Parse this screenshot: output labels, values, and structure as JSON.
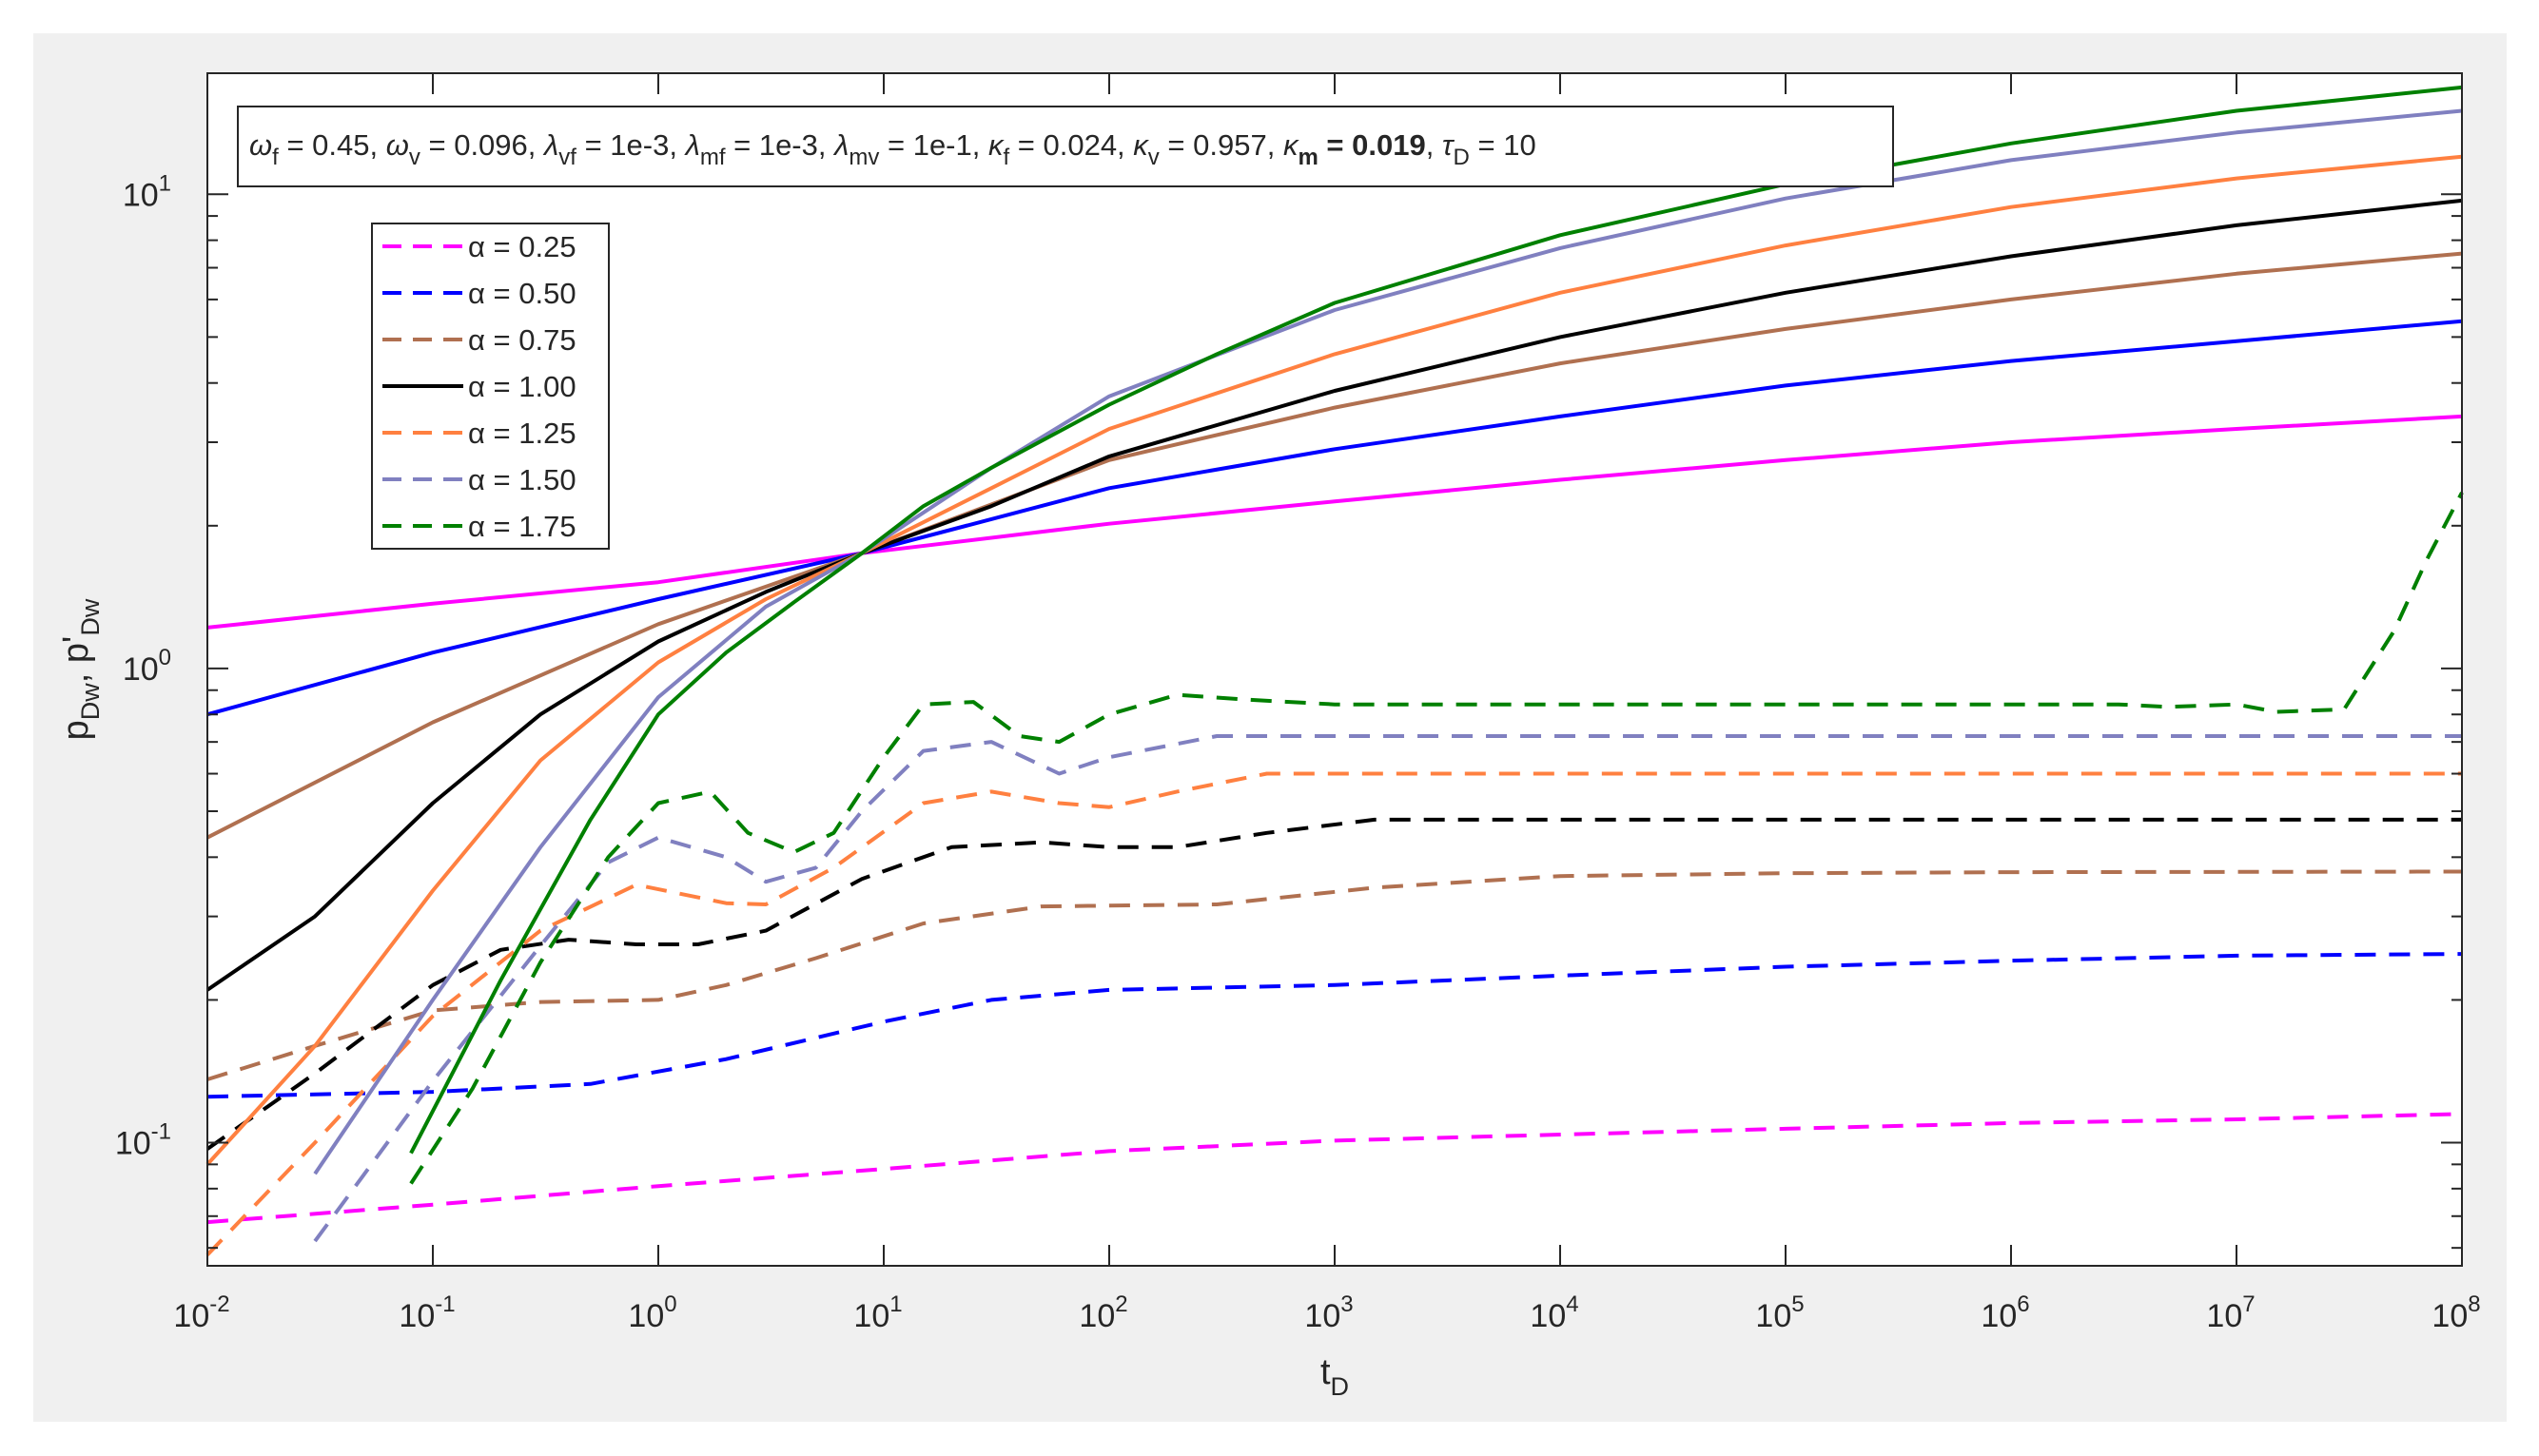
{
  "chart_data": {
    "type": "line",
    "xlabel": "t",
    "xlabel_sub": "D",
    "ylabel_parts": [
      {
        "t": "p",
        "sub": false
      },
      {
        "t": "Dw",
        "sub": true
      },
      {
        "t": ", p'",
        "sub": false
      },
      {
        "t": "Dw",
        "sub": true
      }
    ],
    "x_scale": "log",
    "y_scale": "log",
    "xlim": [
      0.01,
      100000000
    ],
    "ylim": [
      0.055,
      18
    ],
    "x_ticks": [
      {
        "base": "10",
        "exp": "-2",
        "value": 0.01
      },
      {
        "base": "10",
        "exp": "-1",
        "value": 0.1
      },
      {
        "base": "10",
        "exp": "0",
        "value": 1
      },
      {
        "base": "10",
        "exp": "1",
        "value": 10
      },
      {
        "base": "10",
        "exp": "2",
        "value": 100
      },
      {
        "base": "10",
        "exp": "3",
        "value": 1000
      },
      {
        "base": "10",
        "exp": "4",
        "value": 10000
      },
      {
        "base": "10",
        "exp": "5",
        "value": 100000
      },
      {
        "base": "10",
        "exp": "6",
        "value": 1000000
      },
      {
        "base": "10",
        "exp": "7",
        "value": 10000000
      },
      {
        "base": "10",
        "exp": "8",
        "value": 100000000
      }
    ],
    "y_ticks": [
      {
        "base": "10",
        "exp": "-1",
        "value": 0.1
      },
      {
        "base": "10",
        "exp": "0",
        "value": 1
      },
      {
        "base": "10",
        "exp": "1",
        "value": 10
      }
    ],
    "grid": false,
    "annotation_parts": [
      {
        "t": "ω",
        "greek": true
      },
      {
        "t": "f",
        "sub": true
      },
      {
        "t": " = 0.45, "
      },
      {
        "t": "ω",
        "greek": true
      },
      {
        "t": "v",
        "sub": true
      },
      {
        "t": " = 0.096, "
      },
      {
        "t": "λ",
        "greek": true
      },
      {
        "t": "vf",
        "sub": true
      },
      {
        "t": " = 1e-3, "
      },
      {
        "t": "λ",
        "greek": true
      },
      {
        "t": "mf",
        "sub": true
      },
      {
        "t": " = 1e-3, "
      },
      {
        "t": "λ",
        "greek": true
      },
      {
        "t": "mv",
        "sub": true
      },
      {
        "t": " = 1e-1, "
      },
      {
        "t": "κ",
        "greek": true
      },
      {
        "t": "f",
        "sub": true
      },
      {
        "t": " = 0.024, "
      },
      {
        "t": "κ",
        "greek": true
      },
      {
        "t": "v",
        "sub": true
      },
      {
        "t": " = 0.957, "
      },
      {
        "t": "κ",
        "greek": true
      },
      {
        "t": "m",
        "sub": true,
        "bold": true
      },
      {
        "t": " = 0.019",
        "bold": true
      },
      {
        "t": ", "
      },
      {
        "t": "τ",
        "greek": true
      },
      {
        "t": "D",
        "sub": true
      },
      {
        "t": " = 10"
      }
    ],
    "legend_position": "top-left",
    "series": [
      {
        "name": "α = 0.25",
        "color": "#ff00ff",
        "pressure": [
          [
            0.01,
            1.22
          ],
          [
            0.1,
            1.37
          ],
          [
            1,
            1.52
          ],
          [
            8,
            1.75
          ],
          [
            100,
            2.02
          ],
          [
            1000,
            2.25
          ],
          [
            10000,
            2.5
          ],
          [
            100000,
            2.75
          ],
          [
            1000000,
            3.0
          ],
          [
            10000000,
            3.2
          ],
          [
            100000000,
            3.4
          ]
        ],
        "derivative": [
          [
            0.01,
            0.068
          ],
          [
            0.1,
            0.074
          ],
          [
            1,
            0.081
          ],
          [
            10,
            0.088
          ],
          [
            100,
            0.096
          ],
          [
            1000,
            0.101
          ],
          [
            10000,
            0.104
          ],
          [
            100000,
            0.107
          ],
          [
            1000000,
            0.11
          ],
          [
            10000000,
            0.112
          ],
          [
            100000000,
            0.115
          ]
        ]
      },
      {
        "name": "α = 0.50",
        "color": "#0000ff",
        "pressure": [
          [
            0.01,
            0.8
          ],
          [
            0.1,
            1.08
          ],
          [
            1,
            1.4
          ],
          [
            8,
            1.75
          ],
          [
            100,
            2.4
          ],
          [
            1000,
            2.9
          ],
          [
            10000,
            3.4
          ],
          [
            100000,
            3.95
          ],
          [
            1000000,
            4.45
          ],
          [
            10000000,
            4.9
          ],
          [
            100000000,
            5.4
          ]
        ],
        "derivative": [
          [
            0.01,
            0.125
          ],
          [
            0.1,
            0.128
          ],
          [
            0.5,
            0.133
          ],
          [
            2,
            0.15
          ],
          [
            10,
            0.18
          ],
          [
            30,
            0.2
          ],
          [
            100,
            0.21
          ],
          [
            1000,
            0.215
          ],
          [
            10000,
            0.225
          ],
          [
            100000,
            0.235
          ],
          [
            1000000,
            0.242
          ],
          [
            10000000,
            0.248
          ],
          [
            100000000,
            0.25
          ]
        ]
      },
      {
        "name": "α = 0.75",
        "color": "#b07050",
        "pressure": [
          [
            0.01,
            0.44
          ],
          [
            0.1,
            0.77
          ],
          [
            1,
            1.24
          ],
          [
            8,
            1.75
          ],
          [
            100,
            2.75
          ],
          [
            1000,
            3.55
          ],
          [
            10000,
            4.4
          ],
          [
            100000,
            5.2
          ],
          [
            1000000,
            6.0
          ],
          [
            10000000,
            6.8
          ],
          [
            100000000,
            7.5
          ]
        ],
        "derivative": [
          [
            0.01,
            0.136
          ],
          [
            0.03,
            0.16
          ],
          [
            0.1,
            0.19
          ],
          [
            0.3,
            0.198
          ],
          [
            1,
            0.2
          ],
          [
            2,
            0.215
          ],
          [
            5,
            0.245
          ],
          [
            15,
            0.29
          ],
          [
            50,
            0.315
          ],
          [
            300,
            0.318
          ],
          [
            1500,
            0.345
          ],
          [
            10000,
            0.365
          ],
          [
            100000,
            0.37
          ],
          [
            1000000,
            0.372
          ],
          [
            100000000,
            0.373
          ]
        ]
      },
      {
        "name": "α = 1.00",
        "color": "#000000",
        "pressure": [
          [
            0.01,
            0.21
          ],
          [
            0.03,
            0.3
          ],
          [
            0.1,
            0.52
          ],
          [
            0.3,
            0.8
          ],
          [
            1,
            1.14
          ],
          [
            3,
            1.45
          ],
          [
            8,
            1.75
          ],
          [
            30,
            2.2
          ],
          [
            100,
            2.8
          ],
          [
            1000,
            3.85
          ],
          [
            10000,
            5.0
          ],
          [
            100000,
            6.2
          ],
          [
            1000000,
            7.4
          ],
          [
            10000000,
            8.6
          ],
          [
            100000000,
            9.7
          ]
        ],
        "derivative": [
          [
            0.01,
            0.097
          ],
          [
            0.03,
            0.14
          ],
          [
            0.1,
            0.215
          ],
          [
            0.2,
            0.255
          ],
          [
            0.4,
            0.268
          ],
          [
            0.8,
            0.262
          ],
          [
            1.5,
            0.262
          ],
          [
            3,
            0.28
          ],
          [
            8,
            0.36
          ],
          [
            20,
            0.42
          ],
          [
            50,
            0.43
          ],
          [
            100,
            0.42
          ],
          [
            200,
            0.42
          ],
          [
            500,
            0.45
          ],
          [
            1500,
            0.48
          ],
          [
            10000,
            0.48
          ],
          [
            100000000,
            0.48
          ]
        ]
      },
      {
        "name": "α = 1.25",
        "color": "#ff8040",
        "pressure": [
          [
            0.01,
            0.09
          ],
          [
            0.03,
            0.16
          ],
          [
            0.1,
            0.34
          ],
          [
            0.3,
            0.64
          ],
          [
            1,
            1.03
          ],
          [
            3,
            1.4
          ],
          [
            8,
            1.75
          ],
          [
            30,
            2.4
          ],
          [
            100,
            3.2
          ],
          [
            1000,
            4.6
          ],
          [
            10000,
            6.2
          ],
          [
            100000,
            7.8
          ],
          [
            1000000,
            9.4
          ],
          [
            10000000,
            10.8
          ],
          [
            100000000,
            12.0
          ]
        ],
        "derivative": [
          [
            0.01,
            0.058
          ],
          [
            0.03,
            0.1
          ],
          [
            0.1,
            0.185
          ],
          [
            0.3,
            0.28
          ],
          [
            0.8,
            0.35
          ],
          [
            2,
            0.32
          ],
          [
            3,
            0.318
          ],
          [
            6,
            0.38
          ],
          [
            15,
            0.52
          ],
          [
            30,
            0.55
          ],
          [
            60,
            0.52
          ],
          [
            100,
            0.51
          ],
          [
            200,
            0.55
          ],
          [
            500,
            0.6
          ],
          [
            2000,
            0.6
          ],
          [
            100000000,
            0.6
          ]
        ]
      },
      {
        "name": "α = 1.50",
        "color": "#8080c0",
        "pressure": [
          [
            0.03,
            0.086
          ],
          [
            0.1,
            0.2
          ],
          [
            0.3,
            0.42
          ],
          [
            1,
            0.87
          ],
          [
            3,
            1.35
          ],
          [
            8,
            1.75
          ],
          [
            30,
            2.65
          ],
          [
            100,
            3.75
          ],
          [
            1000,
            5.7
          ],
          [
            10000,
            7.7
          ],
          [
            100000,
            9.8
          ],
          [
            1000000,
            11.8
          ],
          [
            10000000,
            13.5
          ],
          [
            100000000,
            15.0
          ]
        ],
        "derivative": [
          [
            0.03,
            0.062
          ],
          [
            0.1,
            0.135
          ],
          [
            0.3,
            0.26
          ],
          [
            0.6,
            0.39
          ],
          [
            1,
            0.44
          ],
          [
            2,
            0.4
          ],
          [
            3,
            0.355
          ],
          [
            5,
            0.38
          ],
          [
            8,
            0.5
          ],
          [
            15,
            0.67
          ],
          [
            30,
            0.7
          ],
          [
            60,
            0.6
          ],
          [
            100,
            0.65
          ],
          [
            300,
            0.72
          ],
          [
            1000,
            0.72
          ],
          [
            10000,
            0.72
          ],
          [
            100000000,
            0.72
          ]
        ]
      },
      {
        "name": "α = 1.75",
        "color": "#008000",
        "pressure": [
          [
            0.08,
            0.095
          ],
          [
            0.2,
            0.22
          ],
          [
            0.5,
            0.48
          ],
          [
            1,
            0.8
          ],
          [
            2,
            1.08
          ],
          [
            4,
            1.38
          ],
          [
            8,
            1.75
          ],
          [
            15,
            2.2
          ],
          [
            30,
            2.65
          ],
          [
            100,
            3.6
          ],
          [
            300,
            4.6
          ],
          [
            1000,
            5.9
          ],
          [
            10000,
            8.2
          ],
          [
            100000,
            10.5
          ],
          [
            1000000,
            12.8
          ],
          [
            10000000,
            15.0
          ],
          [
            100000000,
            16.8
          ]
        ],
        "derivative": [
          [
            0.08,
            0.082
          ],
          [
            0.15,
            0.13
          ],
          [
            0.3,
            0.24
          ],
          [
            0.6,
            0.4
          ],
          [
            1,
            0.52
          ],
          [
            1.7,
            0.55
          ],
          [
            2.5,
            0.45
          ],
          [
            4,
            0.41
          ],
          [
            6,
            0.45
          ],
          [
            10,
            0.65
          ],
          [
            15,
            0.84
          ],
          [
            25,
            0.85
          ],
          [
            40,
            0.72
          ],
          [
            60,
            0.7
          ],
          [
            100,
            0.8
          ],
          [
            200,
            0.88
          ],
          [
            400,
            0.86
          ],
          [
            1000,
            0.84
          ],
          [
            10000,
            0.84
          ],
          [
            100000,
            0.84
          ],
          [
            1000000,
            0.84
          ],
          [
            3000000,
            0.84
          ],
          [
            5000000,
            0.83
          ],
          [
            10000000,
            0.84
          ],
          [
            15000000,
            0.81
          ],
          [
            30000000,
            0.82
          ],
          [
            50000000,
            1.2
          ],
          [
            70000000,
            1.7
          ],
          [
            100000000,
            2.35
          ]
        ]
      }
    ]
  }
}
